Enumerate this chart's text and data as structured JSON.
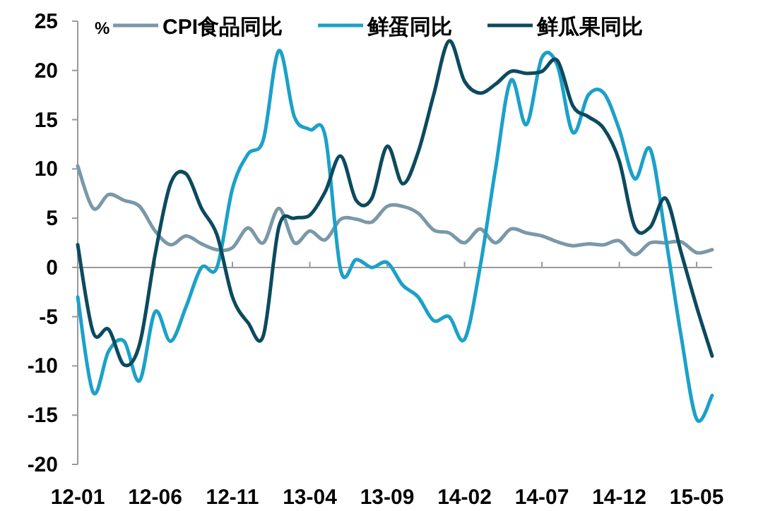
{
  "chart_data": {
    "type": "line",
    "ylabel": "%",
    "x": [
      "2012-01",
      "2012-02",
      "2012-03",
      "2012-04",
      "2012-05",
      "2012-06",
      "2012-07",
      "2012-08",
      "2012-09",
      "2012-10",
      "2012-11",
      "2012-12",
      "2013-01",
      "2013-02",
      "2013-03",
      "2013-04",
      "2013-05",
      "2013-06",
      "2013-07",
      "2013-08",
      "2013-09",
      "2013-10",
      "2013-11",
      "2013-12",
      "2014-01",
      "2014-02",
      "2014-03",
      "2014-04",
      "2014-05",
      "2014-06",
      "2014-07",
      "2014-08",
      "2014-09",
      "2014-10",
      "2014-11",
      "2014-12",
      "2015-01",
      "2015-02",
      "2015-03",
      "2015-04",
      "2015-05",
      "2015-06"
    ],
    "series": [
      {
        "name": "CPI食品同比",
        "color": "#7a98a8",
        "values": [
          10.3,
          6,
          7.4,
          6.8,
          6.2,
          3.7,
          2.3,
          3.2,
          2.4,
          1.8,
          2,
          4,
          2.5,
          6,
          2.5,
          3.7,
          2.8,
          4.9,
          4.9,
          4.6,
          6.2,
          6.2,
          5.5,
          3.8,
          3.5,
          2.5,
          3.9,
          2.5,
          3.9,
          3.5,
          3.2,
          2.6,
          2.2,
          2.4,
          2.3,
          2.7,
          1.3,
          2.5,
          2.5,
          2.6,
          1.5,
          1.8
        ]
      },
      {
        "name": "鲜蛋同比",
        "color": "#1ba1c9",
        "values": [
          -3,
          -12.7,
          -8.5,
          -7.5,
          -11.5,
          -4.5,
          -7.5,
          -4,
          0,
          0,
          8,
          11.5,
          13,
          22,
          15.3,
          14,
          13.3,
          -0.3,
          0.8,
          0,
          0.5,
          -1.8,
          -3,
          -5.4,
          -5,
          -7.3,
          0,
          10,
          19,
          14.5,
          21.3,
          20.5,
          13.7,
          17.5,
          17.7,
          14,
          9,
          12,
          3,
          -7,
          -15.4,
          -13
        ]
      },
      {
        "name": "鲜瓜果同比",
        "color": "#0c4a5e",
        "values": [
          2.3,
          -6.6,
          -6.3,
          -9.9,
          -7.8,
          1.3,
          8.5,
          9.5,
          6,
          3.3,
          -3,
          -5.6,
          -6.9,
          4.1,
          5,
          5.3,
          7.7,
          11.3,
          6.8,
          7,
          12.3,
          8.5,
          11.7,
          17.5,
          23,
          18.9,
          17.7,
          18.6,
          19.9,
          19.7,
          19.9,
          21,
          16.4,
          15.3,
          14.1,
          10.8,
          4.1,
          4.1,
          7,
          1.5,
          -4,
          -9
        ]
      }
    ],
    "xlim": [
      "2012-01",
      "2015-06"
    ],
    "xticks": [
      {
        "value": "2012-01",
        "label": "12-01"
      },
      {
        "value": "2012-06",
        "label": "12-06"
      },
      {
        "value": "2012-11",
        "label": "12-11"
      },
      {
        "value": "2013-04",
        "label": "13-04"
      },
      {
        "value": "2013-09",
        "label": "13-09"
      },
      {
        "value": "2014-02",
        "label": "14-02"
      },
      {
        "value": "2014-07",
        "label": "14-07"
      },
      {
        "value": "2014-12",
        "label": "14-12"
      },
      {
        "value": "2015-05",
        "label": "15-05"
      }
    ],
    "ylim": [
      -20,
      25
    ],
    "yticks": [
      -20,
      -15,
      -10,
      -5,
      0,
      5,
      10,
      15,
      20,
      25
    ],
    "legend": "top",
    "marker": "none",
    "line_style": "solid"
  }
}
